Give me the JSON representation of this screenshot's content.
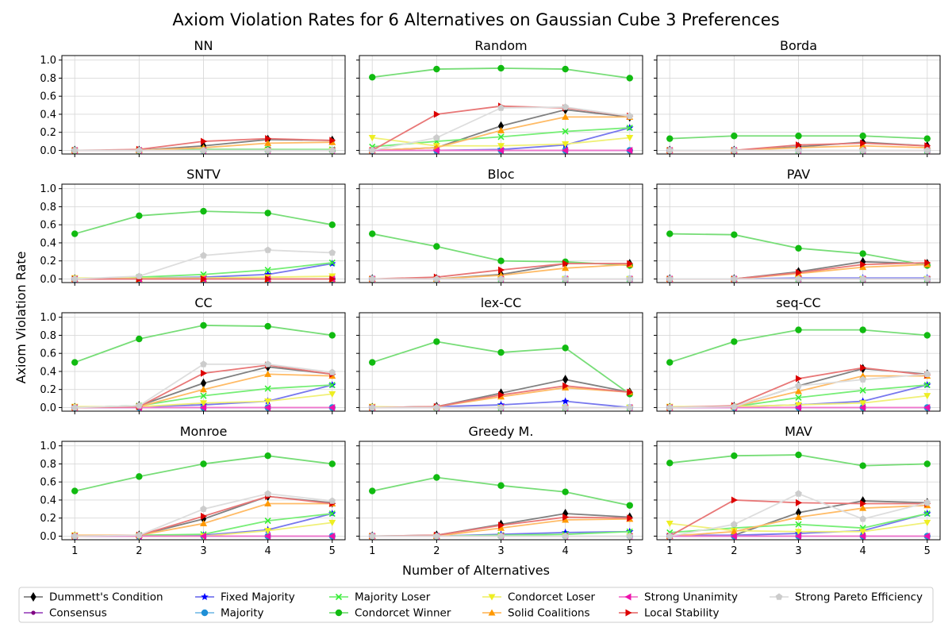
{
  "chart_data": {
    "type": "line",
    "title": "Axiom Violation Rates for 6 Alternatives on Gaussian Cube 3 Preferences",
    "xlabel": "Number of Alternatives",
    "ylabel": "Axiom Violation Rate",
    "x": [
      1,
      2,
      3,
      4,
      5
    ],
    "xticks": [
      "1",
      "2",
      "3",
      "4",
      "5"
    ],
    "ylim": [
      0,
      1.0
    ],
    "yticks": [
      "0.0",
      "0.2",
      "0.4",
      "0.6",
      "0.8",
      "1.0"
    ],
    "grid": true,
    "legend_position": "bottom",
    "axioms": [
      {
        "name": "Dummett's Condition",
        "color": "#000000",
        "line": "#808080",
        "marker": "diamond"
      },
      {
        "name": "Consensus",
        "color": "#800080",
        "line": "#a050c0",
        "marker": "dot"
      },
      {
        "name": "Fixed Majority",
        "color": "#0000ff",
        "line": "#7777ee",
        "marker": "star"
      },
      {
        "name": "Majority",
        "color": "#1f8fd6",
        "line": "#7fbfe8",
        "marker": "circle"
      },
      {
        "name": "Majority Loser",
        "color": "#33ee33",
        "line": "#77ee77",
        "marker": "x"
      },
      {
        "name": "Condorcet Winner",
        "color": "#11bb11",
        "line": "#77dd77",
        "marker": "circle"
      },
      {
        "name": "Condorcet Loser",
        "color": "#eeee22",
        "line": "#f0f077",
        "marker": "tri-down"
      },
      {
        "name": "Solid Coalitions",
        "color": "#ff9900",
        "line": "#ffbb66",
        "marker": "tri-up"
      },
      {
        "name": "Strong Unanimity",
        "color": "#ee11aa",
        "line": "#f077cc",
        "marker": "tri-left"
      },
      {
        "name": "Local Stability",
        "color": "#dd0000",
        "line": "#e87777",
        "marker": "tri-right"
      },
      {
        "name": "Strong Pareto Efficiency",
        "color": "#cccccc",
        "line": "#dddddd",
        "marker": "pentagon"
      }
    ],
    "panels": [
      {
        "title": "NN",
        "series": {
          "Dummett's Condition": [
            0,
            0,
            0.05,
            0.12,
            0.11
          ],
          "Consensus": [
            0,
            0,
            0,
            0,
            0
          ],
          "Fixed Majority": [
            0,
            0,
            0,
            0,
            0
          ],
          "Majority": [
            0,
            0,
            0,
            0,
            0
          ],
          "Majority Loser": [
            0,
            0,
            0.01,
            0.01,
            0.01
          ],
          "Condorcet Winner": [
            0,
            0,
            0.01,
            0.01,
            0
          ],
          "Condorcet Loser": [
            0,
            0,
            0,
            0,
            0
          ],
          "Solid Coalitions": [
            0,
            0,
            0.03,
            0.08,
            0.09
          ],
          "Strong Unanimity": [
            0,
            0,
            0,
            0,
            0
          ],
          "Local Stability": [
            0,
            0.01,
            0.1,
            0.13,
            0.11
          ],
          "Strong Pareto Efficiency": [
            0,
            0,
            0,
            0,
            0
          ]
        }
      },
      {
        "title": "Random",
        "series": {
          "Dummett's Condition": [
            0,
            0.03,
            0.27,
            0.45,
            0.37
          ],
          "Consensus": [
            0,
            0,
            0,
            0,
            0
          ],
          "Fixed Majority": [
            0,
            0,
            0.01,
            0.06,
            0.25
          ],
          "Majority": [
            0,
            0,
            0,
            0,
            0
          ],
          "Majority Loser": [
            0.04,
            0.1,
            0.15,
            0.21,
            0.25
          ],
          "Condorcet Winner": [
            0.81,
            0.9,
            0.91,
            0.9,
            0.8
          ],
          "Condorcet Loser": [
            0.14,
            0.05,
            0.05,
            0.07,
            0.14
          ],
          "Solid Coalitions": [
            0,
            0.03,
            0.22,
            0.37,
            0.37
          ],
          "Strong Unanimity": [
            0,
            0,
            0,
            0,
            0
          ],
          "Local Stability": [
            0,
            0.4,
            0.49,
            0.47,
            0.38
          ],
          "Strong Pareto Efficiency": [
            0,
            0.14,
            0.47,
            0.48,
            0.38
          ]
        }
      },
      {
        "title": "Borda",
        "series": {
          "Dummett's Condition": [
            0,
            0,
            0.04,
            0.09,
            0.05
          ],
          "Consensus": [
            0,
            0,
            0,
            0,
            0
          ],
          "Fixed Majority": [
            0,
            0,
            0,
            0,
            0
          ],
          "Majority": [
            0,
            0,
            0,
            0,
            0
          ],
          "Majority Loser": [
            0,
            0,
            0,
            0,
            0
          ],
          "Condorcet Winner": [
            0.13,
            0.16,
            0.16,
            0.16,
            0.13
          ],
          "Condorcet Loser": [
            0,
            0,
            0,
            0,
            0
          ],
          "Solid Coalitions": [
            0,
            0,
            0.03,
            0.05,
            0.03
          ],
          "Strong Unanimity": [
            0,
            0,
            0,
            0,
            0
          ],
          "Local Stability": [
            0,
            0,
            0.06,
            0.08,
            0.05
          ],
          "Strong Pareto Efficiency": [
            0,
            0,
            0,
            0,
            0
          ]
        }
      },
      {
        "title": "SNTV",
        "series": {
          "Dummett's Condition": [
            0,
            0,
            0,
            0,
            0
          ],
          "Consensus": [
            0,
            0,
            0,
            0,
            0
          ],
          "Fixed Majority": [
            0,
            0.01,
            0.02,
            0.05,
            0.17
          ],
          "Majority": [
            0,
            0,
            0,
            0,
            0
          ],
          "Majority Loser": [
            0,
            0.02,
            0.05,
            0.1,
            0.18
          ],
          "Condorcet Winner": [
            0.5,
            0.7,
            0.75,
            0.73,
            0.6
          ],
          "Condorcet Loser": [
            0.01,
            0.01,
            0.01,
            0.02,
            0.03
          ],
          "Solid Coalitions": [
            0,
            0,
            0,
            0,
            0
          ],
          "Strong Unanimity": [
            0,
            0,
            0,
            0,
            0
          ],
          "Local Stability": [
            0,
            0,
            0,
            0,
            0
          ],
          "Strong Pareto Efficiency": [
            0,
            0.03,
            0.26,
            0.32,
            0.29
          ]
        }
      },
      {
        "title": "Bloc",
        "series": {
          "Dummett's Condition": [
            0,
            0,
            0.05,
            0.17,
            0.17
          ],
          "Consensus": [
            0,
            0,
            0,
            0,
            0
          ],
          "Fixed Majority": [
            0,
            0,
            0,
            0,
            0
          ],
          "Majority": [
            0,
            0,
            0,
            0,
            0
          ],
          "Majority Loser": [
            0,
            0,
            0,
            0,
            0
          ],
          "Condorcet Winner": [
            0.5,
            0.36,
            0.2,
            0.19,
            0.15
          ],
          "Condorcet Loser": [
            0,
            0,
            0,
            0,
            0
          ],
          "Solid Coalitions": [
            0,
            0,
            0.04,
            0.12,
            0.16
          ],
          "Strong Unanimity": [
            0,
            0,
            0,
            0,
            0
          ],
          "Local Stability": [
            0,
            0.02,
            0.1,
            0.17,
            0.17
          ],
          "Strong Pareto Efficiency": [
            0,
            0,
            0,
            0,
            0
          ]
        }
      },
      {
        "title": "PAV",
        "series": {
          "Dummett's Condition": [
            0,
            0,
            0.08,
            0.19,
            0.17
          ],
          "Consensus": [
            0,
            0,
            0,
            0,
            0
          ],
          "Fixed Majority": [
            0,
            0,
            0.01,
            0.01,
            0.01
          ],
          "Majority": [
            0,
            0,
            0,
            0,
            0
          ],
          "Majority Loser": [
            0,
            0,
            0,
            0,
            0
          ],
          "Condorcet Winner": [
            0.5,
            0.49,
            0.34,
            0.28,
            0.15
          ],
          "Condorcet Loser": [
            0,
            0,
            0,
            0,
            0
          ],
          "Solid Coalitions": [
            0,
            0,
            0.06,
            0.13,
            0.16
          ],
          "Strong Unanimity": [
            0,
            0,
            0,
            0,
            0
          ],
          "Local Stability": [
            0,
            0,
            0.07,
            0.16,
            0.18
          ],
          "Strong Pareto Efficiency": [
            0,
            0,
            0,
            0,
            0
          ]
        }
      },
      {
        "title": "CC",
        "series": {
          "Dummett's Condition": [
            0,
            0.02,
            0.27,
            0.45,
            0.37
          ],
          "Consensus": [
            0,
            0,
            0,
            0,
            0
          ],
          "Fixed Majority": [
            0,
            0.01,
            0.03,
            0.07,
            0.25
          ],
          "Majority": [
            0,
            0,
            0,
            0,
            0
          ],
          "Majority Loser": [
            0,
            0.02,
            0.13,
            0.21,
            0.25
          ],
          "Condorcet Winner": [
            0.5,
            0.76,
            0.91,
            0.9,
            0.8
          ],
          "Condorcet Loser": [
            0.01,
            0.01,
            0.05,
            0.07,
            0.15
          ],
          "Solid Coalitions": [
            0,
            0.01,
            0.2,
            0.37,
            0.35
          ],
          "Strong Unanimity": [
            0,
            0,
            0,
            0,
            0
          ],
          "Local Stability": [
            0,
            0.01,
            0.38,
            0.47,
            0.37
          ],
          "Strong Pareto Efficiency": [
            0,
            0.02,
            0.48,
            0.48,
            0.39
          ]
        }
      },
      {
        "title": "lex-CC",
        "series": {
          "Dummett's Condition": [
            0,
            0.01,
            0.16,
            0.31,
            0.17
          ],
          "Consensus": [
            0,
            0,
            0,
            0,
            0
          ],
          "Fixed Majority": [
            0,
            0.01,
            0.03,
            0.07,
            0
          ],
          "Majority": [
            0,
            0,
            0,
            0,
            0
          ],
          "Majority Loser": [
            0,
            0,
            0,
            0,
            0
          ],
          "Condorcet Winner": [
            0.5,
            0.73,
            0.61,
            0.66,
            0.15
          ],
          "Condorcet Loser": [
            0.01,
            0,
            0,
            0,
            0
          ],
          "Solid Coalitions": [
            0,
            0.01,
            0.12,
            0.22,
            0.17
          ],
          "Strong Unanimity": [
            0,
            0,
            0,
            0,
            0
          ],
          "Local Stability": [
            0,
            0.01,
            0.14,
            0.24,
            0.17
          ],
          "Strong Pareto Efficiency": [
            0,
            0,
            0,
            0,
            0
          ]
        }
      },
      {
        "title": "seq-CC",
        "series": {
          "Dummett's Condition": [
            0,
            0.01,
            0.24,
            0.43,
            0.37
          ],
          "Consensus": [
            0,
            0,
            0,
            0,
            0
          ],
          "Fixed Majority": [
            0,
            0.01,
            0.03,
            0.07,
            0.25
          ],
          "Majority": [
            0,
            0,
            0,
            0,
            0
          ],
          "Majority Loser": [
            0,
            0.01,
            0.11,
            0.19,
            0.25
          ],
          "Condorcet Winner": [
            0.5,
            0.73,
            0.86,
            0.86,
            0.8
          ],
          "Condorcet Loser": [
            0.01,
            0.01,
            0.03,
            0.05,
            0.13
          ],
          "Solid Coalitions": [
            0,
            0.01,
            0.18,
            0.35,
            0.35
          ],
          "Strong Unanimity": [
            0,
            0,
            0,
            0,
            0
          ],
          "Local Stability": [
            0,
            0.02,
            0.32,
            0.44,
            0.36
          ],
          "Strong Pareto Efficiency": [
            0,
            0.01,
            0.24,
            0.31,
            0.37
          ]
        }
      },
      {
        "title": "Monroe",
        "series": {
          "Dummett's Condition": [
            0,
            0.01,
            0.19,
            0.44,
            0.37
          ],
          "Consensus": [
            0,
            0,
            0,
            0,
            0
          ],
          "Fixed Majority": [
            0,
            0,
            0.01,
            0.07,
            0.25
          ],
          "Majority": [
            0,
            0,
            0,
            0,
            0
          ],
          "Majority Loser": [
            0,
            0.01,
            0.02,
            0.17,
            0.25
          ],
          "Condorcet Winner": [
            0.5,
            0.66,
            0.8,
            0.89,
            0.8
          ],
          "Condorcet Loser": [
            0.01,
            0,
            0,
            0.06,
            0.15
          ],
          "Solid Coalitions": [
            0.01,
            0.01,
            0.14,
            0.36,
            0.36
          ],
          "Strong Unanimity": [
            0,
            0,
            0,
            0,
            0
          ],
          "Local Stability": [
            0,
            0.01,
            0.22,
            0.44,
            0.36
          ],
          "Strong Pareto Efficiency": [
            0,
            0.01,
            0.3,
            0.47,
            0.39
          ]
        }
      },
      {
        "title": "Greedy M.",
        "series": {
          "Dummett's Condition": [
            0,
            0.01,
            0.13,
            0.25,
            0.21
          ],
          "Consensus": [
            0,
            0,
            0,
            0,
            0
          ],
          "Fixed Majority": [
            0,
            0,
            0.02,
            0.04,
            0.05
          ],
          "Majority": [
            0,
            0,
            0,
            0,
            0
          ],
          "Majority Loser": [
            0,
            0,
            0.01,
            0.02,
            0.05
          ],
          "Condorcet Winner": [
            0.5,
            0.65,
            0.56,
            0.49,
            0.34
          ],
          "Condorcet Loser": [
            0,
            0,
            0,
            0,
            0
          ],
          "Solid Coalitions": [
            0,
            0,
            0.09,
            0.18,
            0.19
          ],
          "Strong Unanimity": [
            0,
            0,
            0,
            0,
            0
          ],
          "Local Stability": [
            0,
            0.01,
            0.12,
            0.21,
            0.2
          ],
          "Strong Pareto Efficiency": [
            0,
            0,
            0,
            0,
            0
          ]
        }
      },
      {
        "title": "MAV",
        "series": {
          "Dummett's Condition": [
            0,
            0.01,
            0.26,
            0.39,
            0.37
          ],
          "Consensus": [
            0,
            0,
            0,
            0,
            0
          ],
          "Fixed Majority": [
            0.01,
            0.01,
            0.03,
            0.06,
            0.25
          ],
          "Majority": [
            0,
            0,
            0,
            0,
            0
          ],
          "Majority Loser": [
            0.04,
            0.09,
            0.13,
            0.09,
            0.25
          ],
          "Condorcet Winner": [
            0.81,
            0.89,
            0.9,
            0.78,
            0.8
          ],
          "Condorcet Loser": [
            0.14,
            0.06,
            0.05,
            0.05,
            0.15
          ],
          "Solid Coalitions": [
            0,
            0.05,
            0.21,
            0.31,
            0.34
          ],
          "Strong Unanimity": [
            0,
            0,
            0,
            0,
            0
          ],
          "Local Stability": [
            0,
            0.4,
            0.37,
            0.36,
            0.36
          ],
          "Strong Pareto Efficiency": [
            0,
            0.13,
            0.47,
            0.19,
            0.37
          ]
        }
      }
    ]
  }
}
